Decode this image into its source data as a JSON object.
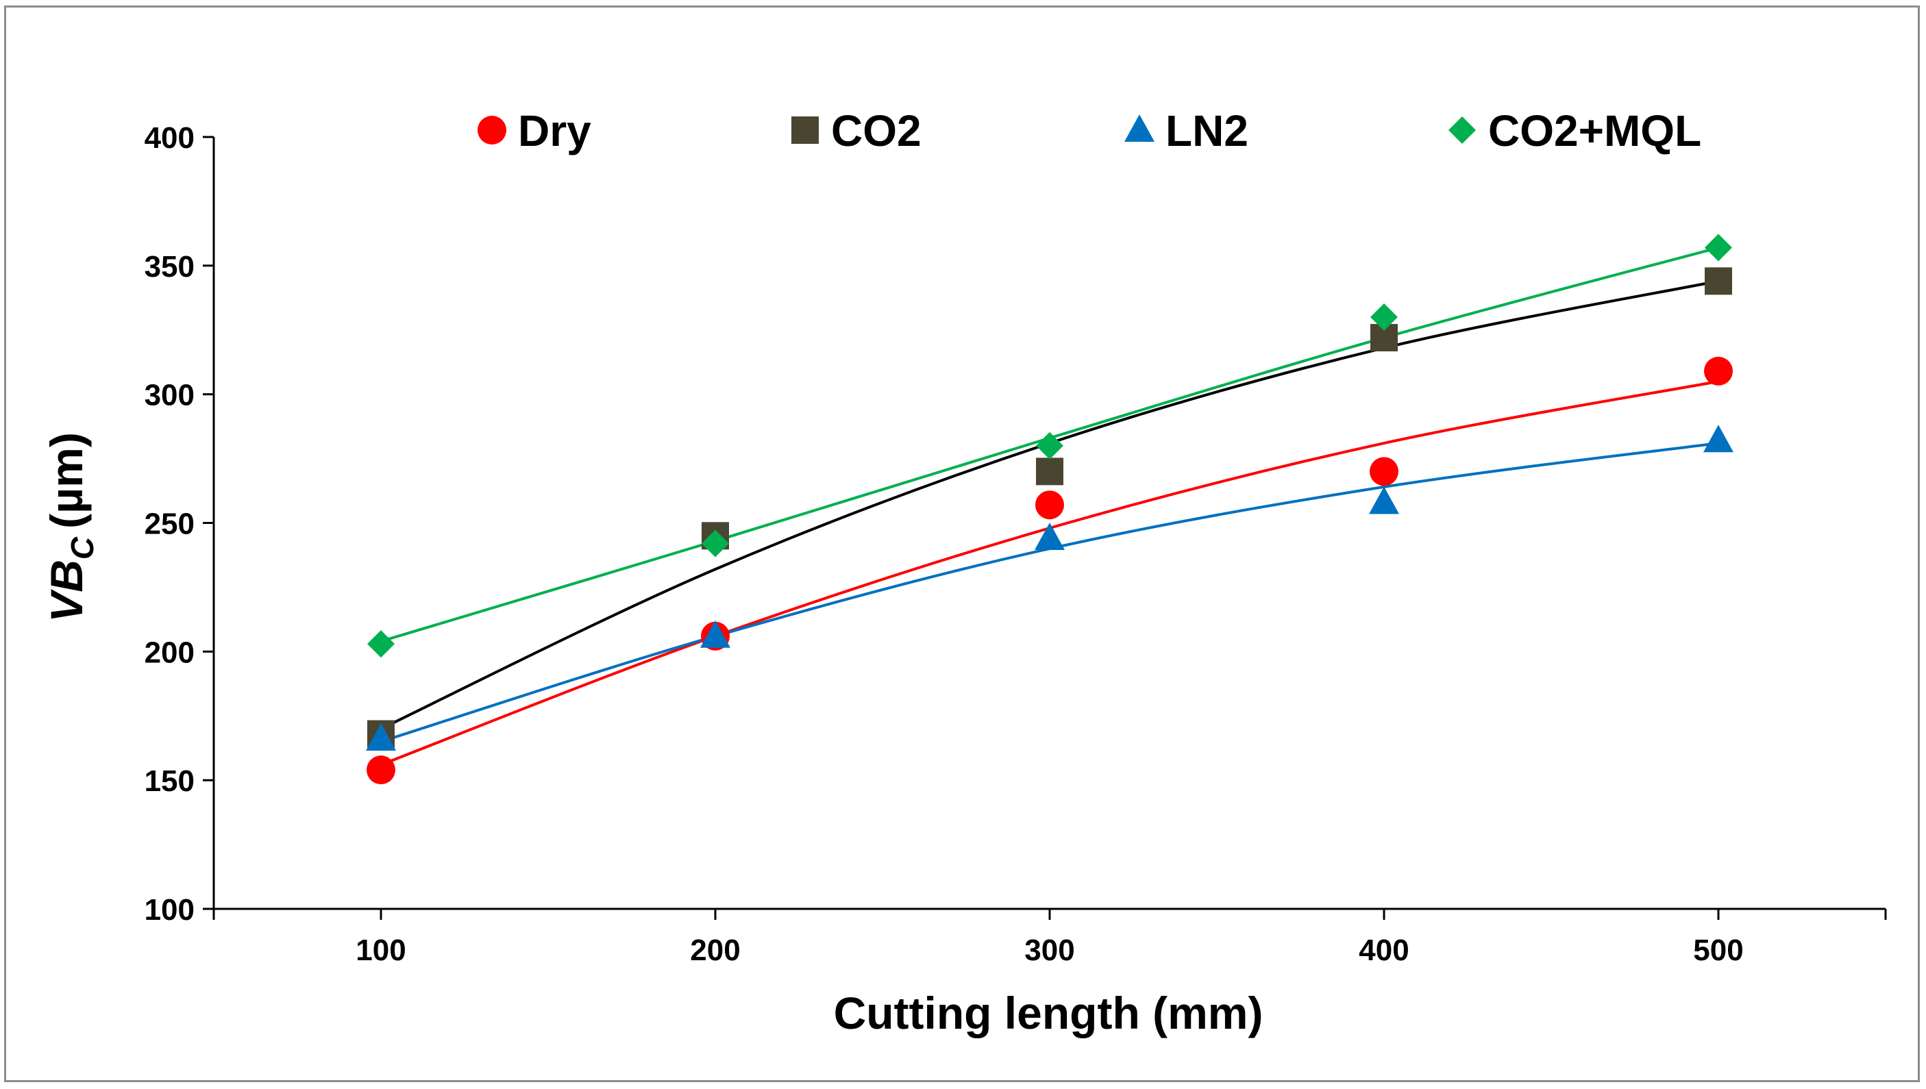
{
  "chart_data": {
    "type": "scatter",
    "title": "",
    "xlabel": "Cutting length (mm)",
    "ylabel": {
      "main": "VB",
      "subscript": "C",
      "unit": "(µm)"
    },
    "xlim": [
      50,
      550
    ],
    "ylim": [
      100,
      400
    ],
    "x_ticks": [
      "100",
      "200",
      "300",
      "400",
      "500"
    ],
    "y_ticks": [
      "100",
      "150",
      "200",
      "250",
      "300",
      "350",
      "400"
    ],
    "legend_position": "top",
    "x": [
      100,
      200,
      300,
      400,
      500
    ],
    "series": [
      {
        "name": "Dry",
        "marker": "circle",
        "color": "#ff0000",
        "trend_color": "#ff0000",
        "values": [
          154,
          206,
          257,
          270,
          309
        ],
        "trend": [
          156,
          206,
          248,
          281,
          305
        ]
      },
      {
        "name": "CO2",
        "marker": "square",
        "color": "#4a4530",
        "trend_color": "#000000",
        "values": [
          168,
          245,
          270,
          322,
          344
        ],
        "trend": [
          170,
          232,
          281,
          318,
          344
        ]
      },
      {
        "name": "LN2",
        "marker": "triangle",
        "color": "#0070c0",
        "trend_color": "#0070c0",
        "values": [
          166,
          206,
          244,
          258,
          282
        ],
        "trend": [
          165,
          206,
          240,
          264,
          281
        ]
      },
      {
        "name": "CO2+MQL",
        "marker": "diamond",
        "color": "#00b050",
        "trend_color": "#00b050",
        "values": [
          203,
          242,
          280,
          330,
          357
        ],
        "trend": [
          204,
          243,
          283,
          322,
          357
        ]
      }
    ]
  }
}
